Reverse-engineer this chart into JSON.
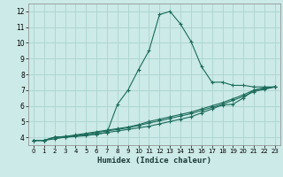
{
  "xlabel": "Humidex (Indice chaleur)",
  "xlim": [
    -0.5,
    23.5
  ],
  "ylim": [
    3.5,
    12.5
  ],
  "xticks": [
    0,
    1,
    2,
    3,
    4,
    5,
    6,
    7,
    8,
    9,
    10,
    11,
    12,
    13,
    14,
    15,
    16,
    17,
    18,
    19,
    20,
    21,
    22,
    23
  ],
  "yticks": [
    4,
    5,
    6,
    7,
    8,
    9,
    10,
    11,
    12
  ],
  "background_color": "#cceae7",
  "grid_color": "#aad4d0",
  "line_color": "#1a6b5a",
  "xlabel_bg": "#3a5a58",
  "lines": [
    {
      "x": [
        0,
        1,
        2,
        3,
        4,
        5,
        6,
        7,
        8,
        9,
        10,
        11,
        12,
        13,
        14,
        15,
        16,
        17,
        18,
        19,
        20,
        21,
        22,
        23
      ],
      "y": [
        3.8,
        3.8,
        4.0,
        4.0,
        4.1,
        4.15,
        4.2,
        4.3,
        6.1,
        7.0,
        8.3,
        9.5,
        11.8,
        12.0,
        11.2,
        10.1,
        8.5,
        7.5,
        7.5,
        7.3,
        7.3,
        7.2,
        7.2,
        7.2
      ],
      "marker": true
    },
    {
      "x": [
        0,
        1,
        2,
        3,
        4,
        5,
        6,
        7,
        8,
        9,
        10,
        11,
        12,
        13,
        14,
        15,
        16,
        17,
        18,
        19,
        20,
        21,
        22,
        23
      ],
      "y": [
        3.8,
        3.8,
        3.9,
        4.0,
        4.05,
        4.1,
        4.2,
        4.3,
        4.4,
        4.5,
        4.6,
        4.7,
        4.85,
        5.0,
        5.15,
        5.3,
        5.55,
        5.8,
        6.05,
        6.1,
        6.5,
        7.0,
        7.1,
        7.2
      ],
      "marker": true
    },
    {
      "x": [
        0,
        1,
        2,
        3,
        4,
        5,
        6,
        7,
        8,
        9,
        10,
        11,
        12,
        13,
        14,
        15,
        16,
        17,
        18,
        19,
        20,
        21,
        22,
        23
      ],
      "y": [
        3.8,
        3.8,
        4.0,
        4.05,
        4.1,
        4.2,
        4.3,
        4.4,
        4.5,
        4.6,
        4.75,
        4.9,
        5.05,
        5.2,
        5.35,
        5.5,
        5.7,
        5.9,
        6.1,
        6.35,
        6.6,
        6.9,
        7.05,
        7.2
      ],
      "marker": true
    },
    {
      "x": [
        0,
        1,
        2,
        3,
        4,
        5,
        6,
        7,
        8,
        9,
        10,
        11,
        12,
        13,
        14,
        15,
        16,
        17,
        18,
        19,
        20,
        21,
        22,
        23
      ],
      "y": [
        3.8,
        3.8,
        4.0,
        4.05,
        4.15,
        4.25,
        4.35,
        4.45,
        4.55,
        4.65,
        4.8,
        5.0,
        5.15,
        5.3,
        5.45,
        5.6,
        5.8,
        6.0,
        6.2,
        6.45,
        6.7,
        7.0,
        7.15,
        7.2
      ],
      "marker": true
    }
  ]
}
